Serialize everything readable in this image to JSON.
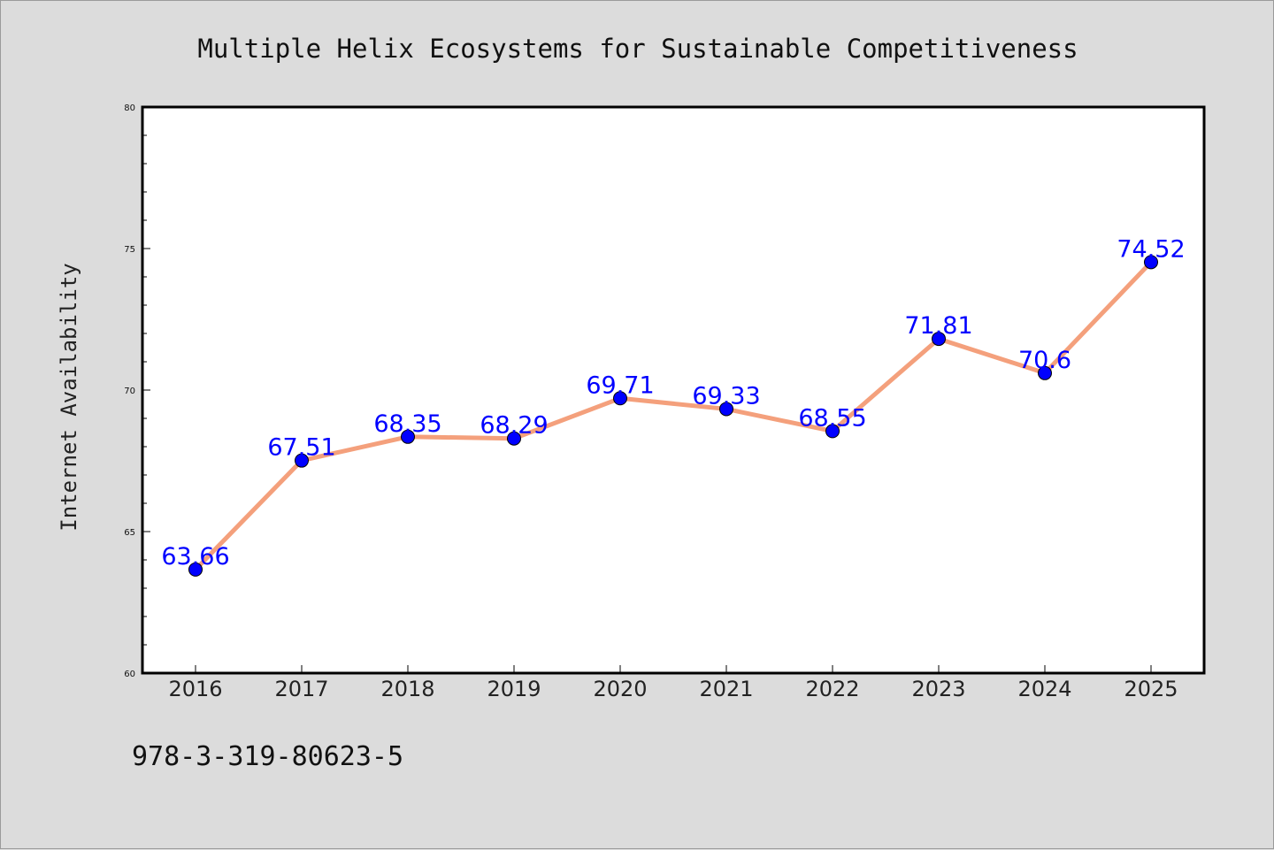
{
  "chart_data": {
    "type": "line",
    "title": "Multiple Helix Ecosystems for Sustainable Competitiveness",
    "xlabel": "",
    "ylabel": "Internet Availability",
    "ylim": [
      60,
      80
    ],
    "yticks": [
      "60",
      "65",
      "70",
      "75",
      "80"
    ],
    "categories": [
      "2016",
      "2017",
      "2018",
      "2019",
      "2020",
      "2021",
      "2022",
      "2023",
      "2024",
      "2025"
    ],
    "series": [
      {
        "values": [
          63.66,
          67.51,
          68.35,
          68.29,
          69.71,
          69.33,
          68.55,
          71.81,
          70.6,
          74.52
        ],
        "labels": [
          "63.66",
          "67.51",
          "68.35",
          "68.29",
          "69.71",
          "69.33",
          "68.55",
          "71.81",
          "70.6",
          "74.52"
        ],
        "line_color": "#f4a07c",
        "marker_color": "#0000ff"
      }
    ],
    "grid": false,
    "legend": "none"
  },
  "footer": {
    "isbn": "978-3-319-80623-5"
  }
}
